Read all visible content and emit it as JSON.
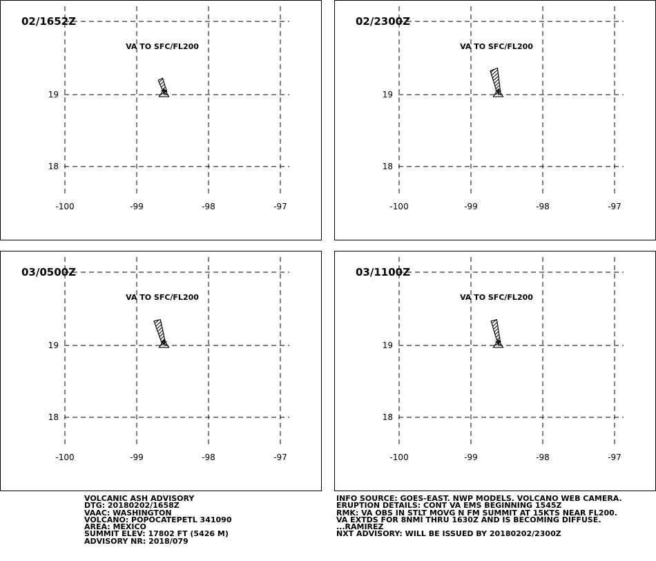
{
  "colors": {
    "background": "#ffffff",
    "ink": "#000000"
  },
  "map": {
    "lon_ticks": [
      -100,
      -99,
      -98,
      -97
    ],
    "lat_ticks": [
      19,
      18
    ],
    "lon_tick_labels": [
      "-100",
      "-99",
      "-98",
      "-97"
    ],
    "lat_tick_labels": [
      "19",
      "18"
    ],
    "volcano": {
      "lon": -98.62,
      "lat": 19.02,
      "symbol": "volcano-triangle-icon"
    }
  },
  "panels": [
    {
      "time_label": "02/1652Z",
      "level_label": "VA TO SFC/FL200",
      "ash_polygon": [
        [
          -98.64,
          19.06
        ],
        [
          -98.58,
          19.04
        ],
        [
          -98.64,
          19.23
        ],
        [
          -98.7,
          19.2
        ]
      ]
    },
    {
      "time_label": "02/2300Z",
      "level_label": "VA TO SFC/FL200",
      "ash_polygon": [
        [
          -98.64,
          19.04
        ],
        [
          -98.59,
          19.04
        ],
        [
          -98.63,
          19.37
        ],
        [
          -98.73,
          19.33
        ]
      ]
    },
    {
      "time_label": "03/0500Z",
      "level_label": "VA TO SFC/FL200",
      "ash_polygon": [
        [
          -98.65,
          19.03
        ],
        [
          -98.6,
          19.04
        ],
        [
          -98.67,
          19.36
        ],
        [
          -98.76,
          19.34
        ]
      ]
    },
    {
      "time_label": "03/1100Z",
      "level_label": "VA TO SFC/FL200",
      "ash_polygon": [
        [
          -98.63,
          19.04
        ],
        [
          -98.59,
          19.04
        ],
        [
          -98.64,
          19.36
        ],
        [
          -98.72,
          19.34
        ]
      ]
    }
  ],
  "advisory_left": [
    "VOLCANIC ASH ADVISORY",
    "DTG: 20180202/1658Z",
    "VAAC: WASHINGTON",
    "VOLCANO: POPOCATEPETL 341090",
    "AREA: MEXICO",
    "SUMMIT ELEV: 17802 FT (5426 M)",
    "ADVISORY NR: 2018/079"
  ],
  "advisory_right": [
    "INFO SOURCE: GOES-EAST. NWP MODELS. VOLCANO WEB CAMERA.",
    "ERUPTION DETAILS: CONT VA EMS BEGINNING 1545Z",
    "RMK: VA OBS IN STLT MOVG N FM SUMMIT AT 15KTS NEAR FL200.",
    "VA EXTDS FOR 8NMI THRU 1630Z AND IS BECOMING DIFFUSE.",
    "...RAMIREZ",
    "NXT ADVISORY: WILL BE ISSUED BY 20180202/2300Z"
  ]
}
